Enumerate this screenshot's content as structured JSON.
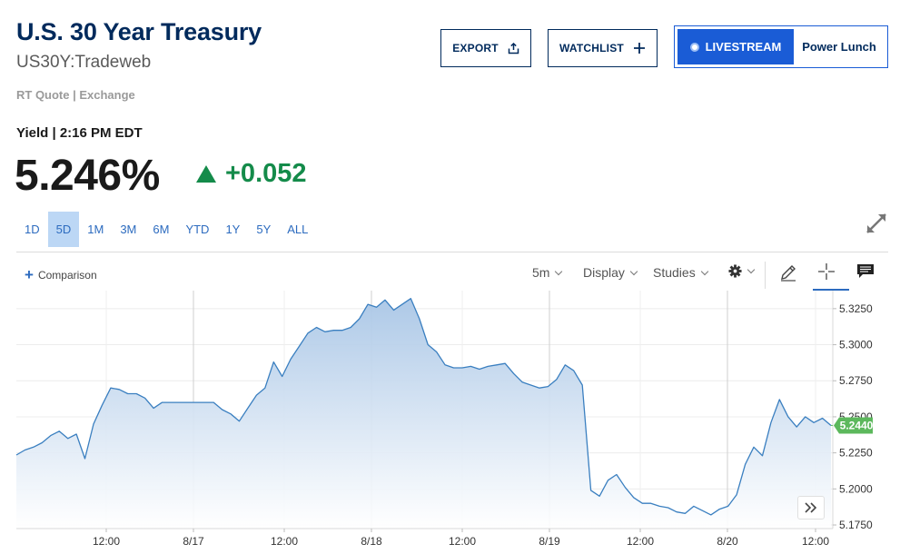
{
  "header": {
    "title": "U.S. 30 Year Treasury",
    "symbol": "US30Y:Tradeweb",
    "quote_type": "RT Quote | Exchange",
    "yield_label": "Yield | 2:16 PM EDT",
    "price": "5.246%",
    "change": "+0.052"
  },
  "buttons": {
    "export": "EXPORT",
    "watchlist": "WATCHLIST",
    "livestream": "LIVESTREAM",
    "show": "Power Lunch"
  },
  "ranges": [
    {
      "label": "1D",
      "active": false
    },
    {
      "label": "5D",
      "active": true
    },
    {
      "label": "1M",
      "active": false
    },
    {
      "label": "3M",
      "active": false
    },
    {
      "label": "6M",
      "active": false
    },
    {
      "label": "YTD",
      "active": false
    },
    {
      "label": "1Y",
      "active": false
    },
    {
      "label": "5Y",
      "active": false
    },
    {
      "label": "ALL",
      "active": false
    }
  ],
  "toolbar": {
    "comparison": "Comparison",
    "interval": "5m",
    "display": "Display",
    "studies": "Studies"
  },
  "colors": {
    "brand": "#002a5c",
    "positive": "#148b4a",
    "accent": "#2c6bbf",
    "live": "#1a5cd6",
    "line": "#3a7fc0",
    "last_price_tag": "#5cb85c"
  },
  "icons": {
    "export": "share-icon",
    "watchlist": "plus-icon",
    "expand": "expand-icon",
    "gear": "gear-icon",
    "pencil": "pencil-icon",
    "crosshair": "crosshair-icon",
    "comment": "comment-icon",
    "scroll": "double-chevron-right-icon"
  },
  "chart_data": {
    "type": "area",
    "x_tick_labels": [
      "12:00",
      "8/17",
      "12:00",
      "8/18",
      "12:00",
      "8/19",
      "12:00",
      "8/20",
      "12:00"
    ],
    "y_ticks": [
      "5.3250",
      "5.3000",
      "5.2750",
      "5.2500",
      "5.2250",
      "5.2000",
      "5.1750"
    ],
    "ylim": [
      5.1725,
      5.3375
    ],
    "last_value_label": "5.2440",
    "last_value": 5.244,
    "grid": true,
    "series": [
      {
        "values": [
          5.2235,
          5.227,
          5.229,
          5.232,
          5.237,
          5.24,
          5.235,
          5.238,
          5.221,
          5.245,
          5.258,
          5.27,
          5.269,
          5.266,
          5.266,
          5.263,
          5.256,
          5.26,
          5.26,
          5.26,
          5.26,
          5.26,
          5.26,
          5.26,
          5.255,
          5.252,
          5.247,
          5.256,
          5.265,
          5.27,
          5.288,
          5.278,
          5.29,
          5.299,
          5.308,
          5.312,
          5.309,
          5.31,
          5.31,
          5.312,
          5.318,
          5.328,
          5.326,
          5.331,
          5.324,
          5.328,
          5.332,
          5.318,
          5.3,
          5.295,
          5.286,
          5.284,
          5.284,
          5.285,
          5.283,
          5.285,
          5.286,
          5.287,
          5.28,
          5.274,
          5.272,
          5.27,
          5.271,
          5.276,
          5.286,
          5.282,
          5.272,
          5.199,
          5.195,
          5.206,
          5.21,
          5.201,
          5.194,
          5.19,
          5.19,
          5.188,
          5.187,
          5.184,
          5.183,
          5.188,
          5.185,
          5.182,
          5.186,
          5.188,
          5.196,
          5.217,
          5.229,
          5.223,
          5.246,
          5.262,
          5.25,
          5.243,
          5.25,
          5.246,
          5.249,
          5.244
        ]
      }
    ]
  }
}
